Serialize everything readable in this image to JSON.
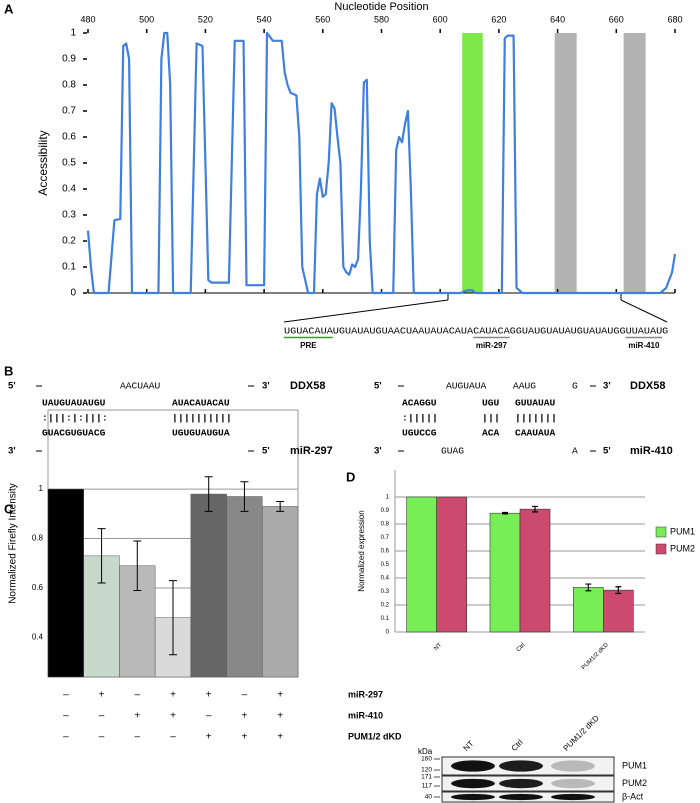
{
  "panels": {
    "a": "A",
    "b": "B",
    "c": "C",
    "d": "D"
  },
  "chart_data": [
    {
      "type": "line",
      "x_label": "Nucleotide Position",
      "y_label": "Accessibility",
      "x": [
        480,
        481,
        482,
        487,
        489,
        491,
        492,
        493,
        494,
        495,
        504,
        505,
        506,
        507,
        508,
        509,
        515,
        517,
        519,
        521,
        522,
        528,
        530,
        533,
        534,
        540,
        541,
        543,
        546,
        547,
        548,
        549,
        551,
        552,
        553,
        555,
        557,
        558,
        559,
        560,
        561,
        562,
        563,
        564,
        565,
        566,
        567,
        568,
        569,
        570,
        571,
        572,
        573,
        574,
        575,
        576,
        577,
        584,
        585,
        586,
        587,
        588,
        589,
        590,
        591,
        607,
        609,
        611,
        612,
        621,
        622,
        623,
        625,
        626,
        628,
        675,
        677,
        679,
        680
      ],
      "values": [
        0.24,
        0.1,
        0,
        0,
        0.28,
        0.285,
        0.95,
        0.96,
        0.9,
        0,
        0,
        0.9,
        1,
        1,
        0.8,
        0,
        0,
        0.96,
        0.95,
        0.05,
        0.04,
        0.04,
        0.97,
        0.97,
        0.03,
        0.03,
        1,
        0.97,
        0.97,
        0.85,
        0.8,
        0.77,
        0.76,
        0.6,
        0.1,
        0,
        0,
        0.38,
        0.44,
        0.37,
        0.38,
        0.5,
        0.73,
        0.71,
        0.6,
        0.5,
        0.1,
        0.08,
        0.07,
        0.11,
        0.1,
        0.13,
        0.4,
        0.81,
        0.82,
        0.2,
        0,
        0,
        0.55,
        0.6,
        0.58,
        0.65,
        0.7,
        0.4,
        0,
        0,
        0.01,
        0.01,
        0,
        0,
        0.98,
        0.99,
        0.99,
        0.02,
        0,
        0,
        0.02,
        0.08,
        0.15
      ],
      "color": "#3f7fe0",
      "xlim": [
        480,
        680
      ],
      "xticks": [
        480,
        500,
        520,
        540,
        560,
        580,
        600,
        620,
        640,
        660,
        680
      ],
      "ylim": [
        0,
        1
      ],
      "yticks": [
        0,
        0.1,
        0.2,
        0.3,
        0.4,
        0.5,
        0.6,
        0.7,
        0.8,
        0.9,
        1
      ],
      "highlights": [
        {
          "start": 607.5,
          "end": 614.5,
          "color": "#7ee84a"
        },
        {
          "start": 639,
          "end": 646.5,
          "color": "#b3b3b3"
        },
        {
          "start": 662.5,
          "end": 670,
          "color": "#b3b3b3"
        }
      ]
    },
    {
      "type": "bar",
      "y_label": "Normalized Firefly Intensity",
      "categories": [
        null,
        null,
        null,
        null,
        null,
        null,
        null
      ],
      "values": [
        1,
        0.73,
        0.69,
        0.48,
        0.98,
        0.97,
        0.93
      ],
      "errors": [
        0,
        0.11,
        0.1,
        0.15,
        0.07,
        0.06,
        0.02
      ],
      "colors": [
        "#000000",
        "#c8d8cb",
        "#b9b9b9",
        "#dadada",
        "#666666",
        "#888888",
        "#ababab"
      ],
      "ylim": [
        0.24,
        1.32
      ],
      "yticks": [
        0.4,
        0.6,
        0.8,
        1
      ],
      "grid": true,
      "conditions": [
        {
          "label": "miR-297",
          "signs": [
            "–",
            "+",
            "–",
            "+",
            "+",
            "–",
            "+"
          ]
        },
        {
          "label": "miR-410",
          "signs": [
            "–",
            "–",
            "+",
            "+",
            "–",
            "+",
            "+"
          ]
        },
        {
          "label": "PUM1/2 dKD",
          "signs": [
            "–",
            "–",
            "–",
            "–",
            "+",
            "+",
            "+"
          ]
        }
      ]
    },
    {
      "type": "grouped-bar",
      "y_label": "Normalized expression",
      "categories": [
        "NT",
        "Ctrl",
        "PUM1/2 dKD"
      ],
      "series": [
        {
          "name": "PUM1",
          "color": "#77ee55",
          "values": [
            1,
            0.88,
            0.33
          ],
          "errors": [
            0,
            0.005,
            0.025
          ]
        },
        {
          "name": "PUM2",
          "color": "#cc4a6e",
          "values": [
            1,
            0.91,
            0.31
          ],
          "errors": [
            0,
            0.02,
            0.025
          ]
        }
      ],
      "ylim": [
        0,
        1.2
      ],
      "yticks": [
        0,
        0.1,
        0.2,
        0.3,
        0.4,
        0.5,
        0.6,
        0.7,
        0.8,
        0.9,
        1
      ],
      "grid": true,
      "legend": "right"
    }
  ],
  "sequence": {
    "segments": [
      "UGUACAUA",
      "UGUAUAUGUAACUAAUAUACAUA",
      "CAUACA",
      "GGUAUGUAUAUGUAUAUGG",
      "UUAUAU",
      "G"
    ],
    "labels": [
      {
        "segment": 0,
        "text": "PRE",
        "color": "#3c9a2c"
      },
      {
        "segment": 2,
        "text": "miR-297",
        "color": "#888888"
      },
      {
        "segment": 4,
        "text": "miR-410",
        "color": "#888888"
      }
    ]
  },
  "duplexes": [
    {
      "target": "DDX58",
      "mirna": "miR-297",
      "top_start": "5'",
      "top_end": "3'",
      "bottom_start": "3'",
      "bottom_end": "5'",
      "top_loops": [
        "AACUAAU"
      ],
      "top": [
        "UAUGUAUAUGU",
        "AUACAUACAU"
      ],
      "pairs": [
        ":|||:|:|||:",
        "||||||||||"
      ],
      "bottom": [
        "GUACGUGUACG",
        "UGUGUAUGUA"
      ],
      "bottom_loops": []
    },
    {
      "target": "DDX58",
      "mirna": "miR-410",
      "top_start": "5'",
      "top_end": "3'",
      "bottom_start": "3'",
      "bottom_end": "5'",
      "top_loops": [
        "AUGUAUA",
        "AAUG",
        "G"
      ],
      "top": [
        "ACAGGU",
        "UGU",
        "GUUAUAU"
      ],
      "pairs": [
        ":|||||",
        "|||",
        "|||||||"
      ],
      "bottom": [
        "UGUCCG",
        "ACA",
        "CAAUAUA"
      ],
      "bottom_loops": [
        "GUAG",
        "A"
      ]
    }
  ],
  "blot": {
    "unit": "kDa",
    "markers": [
      "160",
      "120",
      "171",
      "117",
      "40"
    ],
    "lanes": [
      "NT",
      "Ctrl",
      "PUM1/2 dKD"
    ],
    "proteins": [
      "PUM1",
      "PUM2",
      "β-Act"
    ]
  }
}
